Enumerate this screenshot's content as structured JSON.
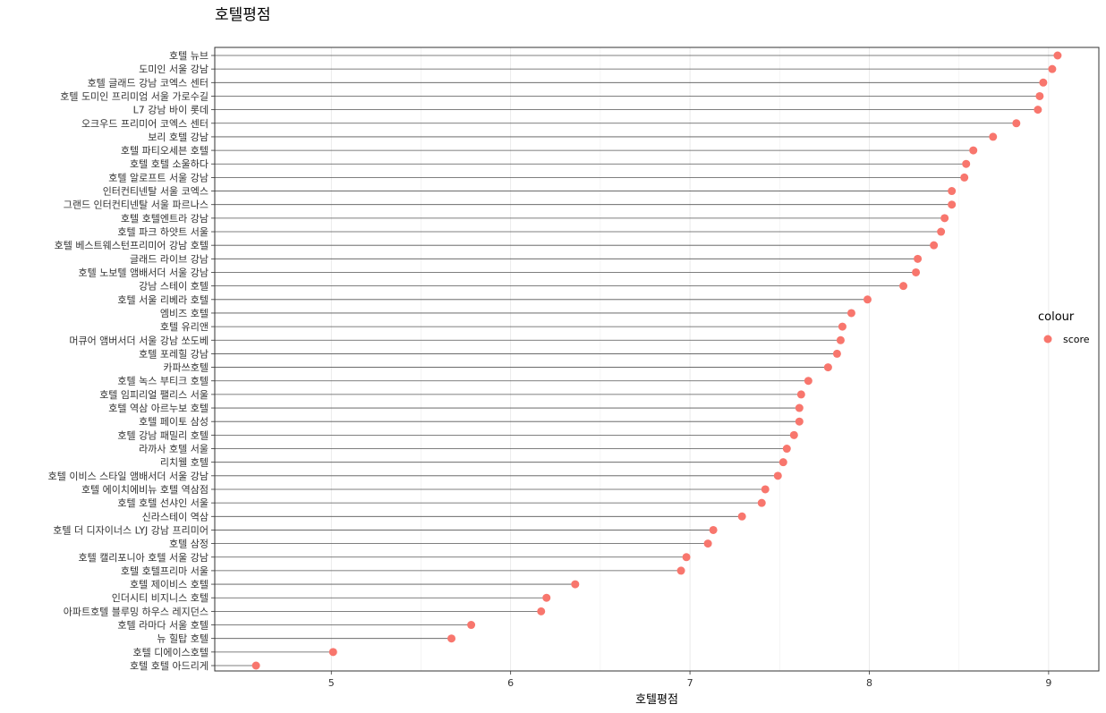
{
  "chart_data": {
    "type": "lollipop",
    "title": "호텔평점",
    "xlabel": "호텔평점",
    "ylabel": "",
    "xlim": [
      4.35,
      9.28
    ],
    "x_ticks": [
      5,
      6,
      7,
      8,
      9
    ],
    "grid": true,
    "legend": {
      "title": "colour",
      "position": "right",
      "entries": [
        {
          "label": "score",
          "color": "#F8766D"
        }
      ]
    },
    "point_color": "#F8766D",
    "stem_color": "#555555",
    "categories": [
      "호텔 뉴브",
      "도미인 서울 강남",
      "호텔 글래드 강남 코엑스 센터",
      "호텔 도미인 프리미엄 서울 가로수길",
      "L7 강남 바이 롯데",
      "오크우드 프리미어 코엑스 센터",
      "보리 호텔 강남",
      "호텔 파티오세븐 호텔",
      "호텔 호텔 소울하다",
      "호텔 알로프트 서울 강남",
      "인터컨티넨탈 서울 코엑스",
      "그랜드 인터컨티넨탈 서울 파르나스",
      "호텔 호텔엔트라 강남",
      "호텔 파크 하얏트 서울",
      "호텔 베스트웨스턴프리미어 강남 호텔",
      "글래드 라이브 강남",
      "호텔 노보텔 앰배서더 서울 강남",
      "강남 스테이 호텔",
      "호텔 서울 리베라 호텔",
      "엠비즈 호텔",
      "호텔 유리앤",
      "머큐어 앰버서더 서울 강남 쏘도베",
      "호텔 포레힐 강남",
      "카파쓰호텔",
      "호텔 녹스 부티크 호텔",
      "호텔 임피리얼 팰리스 서울",
      "호텔 역삼 아르누보 호텔",
      "호텔 페이토 삼성",
      "호텔 강남 패밀리 호텔",
      "라까사 호텔 서울",
      "리치웰 호텔",
      "호텔 이비스 스타일 앰배서더 서울 강남",
      "호텔 에이치에비뉴 호텔 역삼점",
      "호텔 호텔 선샤인 서울",
      "신라스테이 역삼",
      "호텔 더 디자이너스 LYJ 강남 프리미어",
      "호텔 삼정",
      "호텔 캘리포니아 호텔 서울 강남",
      "호텔 호텔프리마 서울",
      "호텔 제이비스 호텔",
      "인더시티 비지니스 호텔",
      "아파트호텔 블루밍 하우스 레지던스",
      "호텔 라마다 서울 호텔",
      "뉴 힐탑 호텔",
      "호텔 디에이스호텔",
      "호텔 호텔 아드리게"
    ],
    "values": [
      9.05,
      9.02,
      8.97,
      8.95,
      8.94,
      8.82,
      8.69,
      8.58,
      8.54,
      8.53,
      8.46,
      8.46,
      8.42,
      8.4,
      8.36,
      8.27,
      8.26,
      8.19,
      7.99,
      7.9,
      7.85,
      7.84,
      7.82,
      7.77,
      7.66,
      7.62,
      7.61,
      7.61,
      7.58,
      7.54,
      7.52,
      7.49,
      7.42,
      7.4,
      7.29,
      7.13,
      7.1,
      6.98,
      6.95,
      6.36,
      6.2,
      6.17,
      5.78,
      5.67,
      5.01,
      4.58
    ]
  }
}
